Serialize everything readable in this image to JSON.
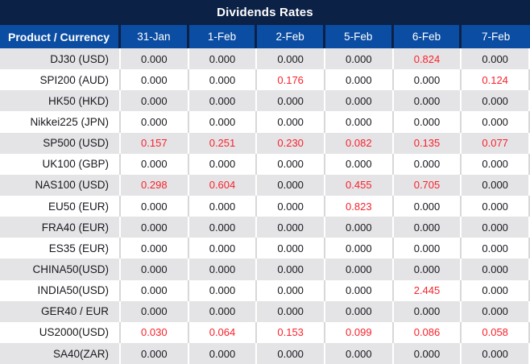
{
  "title": "Dividends Rates",
  "colors": {
    "title_bar_bg": "#0c2146",
    "header_bg": "#0b4da2",
    "row_stripe": "#e4e4e6",
    "value_text": "#18181f",
    "highlight_red": "#f8222b",
    "separator": "#d8d8da"
  },
  "table": {
    "zero_value": "0.000",
    "columns": [
      "Product / Currency",
      "31-Jan",
      "1-Feb",
      "2-Feb",
      "5-Feb",
      "6-Feb",
      "7-Feb"
    ],
    "rows": [
      {
        "product": "DJ30 (USD)",
        "values": [
          "0.000",
          "0.000",
          "0.000",
          "0.000",
          "0.824",
          "0.000"
        ]
      },
      {
        "product": "SPI200 (AUD)",
        "values": [
          "0.000",
          "0.000",
          "0.176",
          "0.000",
          "0.000",
          "0.124"
        ]
      },
      {
        "product": "HK50 (HKD)",
        "values": [
          "0.000",
          "0.000",
          "0.000",
          "0.000",
          "0.000",
          "0.000"
        ]
      },
      {
        "product": "Nikkei225 (JPN)",
        "values": [
          "0.000",
          "0.000",
          "0.000",
          "0.000",
          "0.000",
          "0.000"
        ]
      },
      {
        "product": "SP500 (USD)",
        "values": [
          "0.157",
          "0.251",
          "0.230",
          "0.082",
          "0.135",
          "0.077"
        ]
      },
      {
        "product": "UK100 (GBP)",
        "values": [
          "0.000",
          "0.000",
          "0.000",
          "0.000",
          "0.000",
          "0.000"
        ]
      },
      {
        "product": "NAS100 (USD)",
        "values": [
          "0.298",
          "0.604",
          "0.000",
          "0.455",
          "0.705",
          "0.000"
        ]
      },
      {
        "product": "EU50 (EUR)",
        "values": [
          "0.000",
          "0.000",
          "0.000",
          "0.823",
          "0.000",
          "0.000"
        ]
      },
      {
        "product": "FRA40 (EUR)",
        "values": [
          "0.000",
          "0.000",
          "0.000",
          "0.000",
          "0.000",
          "0.000"
        ]
      },
      {
        "product": "ES35 (EUR)",
        "values": [
          "0.000",
          "0.000",
          "0.000",
          "0.000",
          "0.000",
          "0.000"
        ]
      },
      {
        "product": "CHINA50(USD)",
        "values": [
          "0.000",
          "0.000",
          "0.000",
          "0.000",
          "0.000",
          "0.000"
        ]
      },
      {
        "product": "INDIA50(USD)",
        "values": [
          "0.000",
          "0.000",
          "0.000",
          "0.000",
          "2.445",
          "0.000"
        ]
      },
      {
        "product": "GER40 / EUR",
        "values": [
          "0.000",
          "0.000",
          "0.000",
          "0.000",
          "0.000",
          "0.000"
        ]
      },
      {
        "product": "US2000(USD)",
        "values": [
          "0.030",
          "0.064",
          "0.153",
          "0.099",
          "0.086",
          "0.058"
        ]
      },
      {
        "product": "SA40(ZAR)",
        "values": [
          "0.000",
          "0.000",
          "0.000",
          "0.000",
          "0.000",
          "0.000"
        ]
      }
    ]
  }
}
